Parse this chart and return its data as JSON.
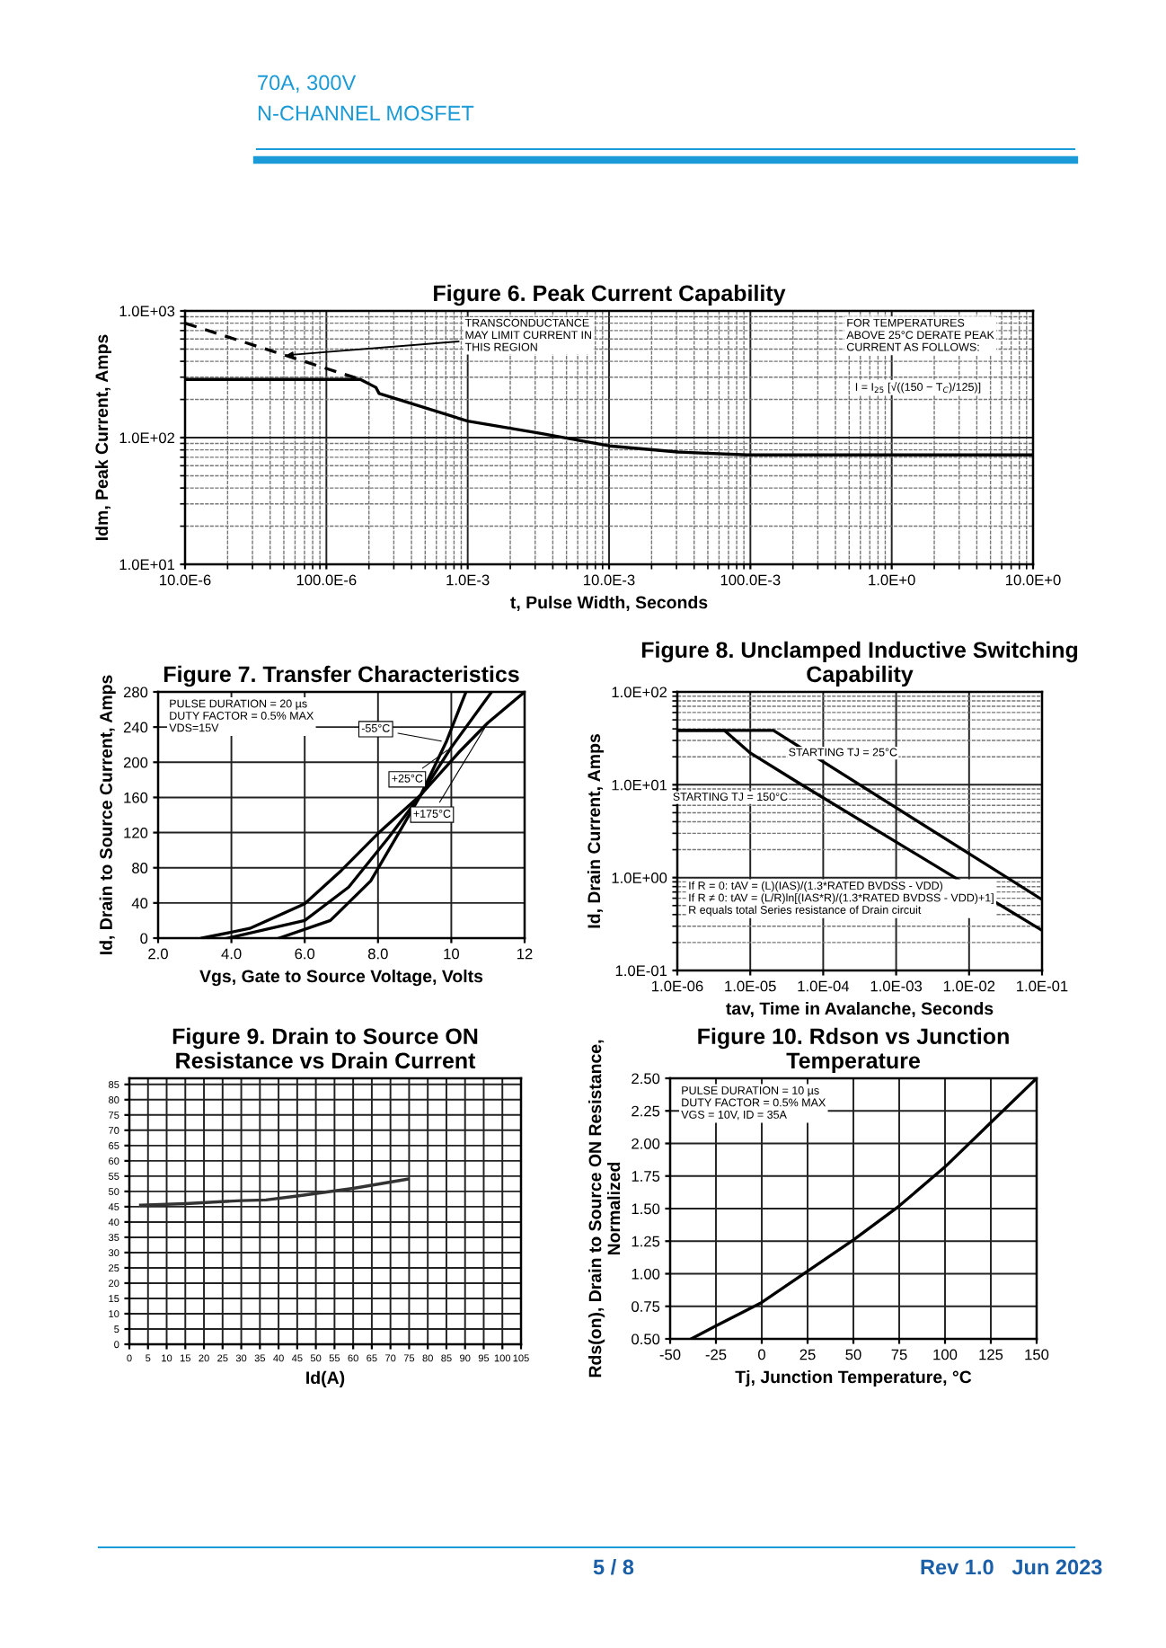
{
  "chart_data": [
    {
      "type": "other",
      "annotations": [
        "70A, 300V",
        "N-CHANNEL MOSFET"
      ]
    },
    {
      "type": "line",
      "title": "Figure 6. Peak Current Capability",
      "xlabel": "t, Pulse Width, Seconds",
      "ylabel": "Idm, Peak Current, Amps",
      "log": "xy",
      "grid": true,
      "xlim": [
        1e-05,
        10
      ],
      "ylim": [
        10,
        1000
      ],
      "xticks": [
        {
          "value": 1e-05,
          "label": "10.0E-6"
        },
        {
          "value": 0.0001,
          "label": "100.0E-6"
        },
        {
          "value": 0.001,
          "label": "1.0E-3"
        },
        {
          "value": 0.01,
          "label": "10.0E-3"
        },
        {
          "value": 0.1,
          "label": "100.0E-3"
        },
        {
          "value": 1,
          "label": "1.0E+0"
        },
        {
          "value": 10,
          "label": "10.0E+0"
        }
      ],
      "yticks": [
        {
          "value": 10,
          "label": "1.0E+01"
        },
        {
          "value": 100,
          "label": "1.0E+02"
        },
        {
          "value": 1000,
          "label": "1.0E+03"
        }
      ],
      "series": [
        {
          "color": "#000000",
          "line_style": "solid",
          "x": [
            1e-05,
            0.000174,
            0.000224,
            0.000236,
            0.001,
            0.0033,
            0.01,
            0.0307,
            0.095,
            10
          ],
          "values": [
            288,
            288,
            249,
            223,
            135,
            108,
            86,
            77,
            73,
            73
          ]
        },
        {
          "color": "#000000",
          "line_style": "dashed",
          "x": [
            1e-05,
            0.000174
          ],
          "values": [
            800,
            288
          ]
        }
      ],
      "annotations": [
        {
          "text": "TRANSCONDUCTANCE\nMAY LIMIT CURRENT IN\nTHIS REGION",
          "x": 4.8e-05,
          "y": 444
        },
        "FOR TEMPERATURES\nABOVE 25°C DERATE PEAK\nCURRENT AS FOLLOWS:",
        "I = I$_{25}$ [√((150 − T$_{C}$)/125)]"
      ]
    },
    {
      "type": "line",
      "title": "Figure 7. Transfer Characteristics",
      "xlabel": "Vgs, Gate to Source Voltage, Volts",
      "ylabel": "Id, Drain to Source Current, Amps",
      "grid": true,
      "xlim": [
        2,
        12
      ],
      "ylim": [
        0,
        280
      ],
      "xticks": [
        {
          "value": 2,
          "label": "2.0"
        },
        {
          "value": 4,
          "label": "4.0"
        },
        {
          "value": 6,
          "label": "6.0"
        },
        {
          "value": 8,
          "label": "8.0"
        },
        10,
        12
      ],
      "yticks": [
        0,
        40,
        80,
        120,
        160,
        200,
        240,
        280
      ],
      "series": [
        {
          "name": "-55°C",
          "color": "#000000",
          "x": [
            5.3,
            6.7,
            7.8,
            8.6,
            9.17,
            9.86,
            10.4
          ],
          "values": [
            0,
            20,
            65,
            122,
            163,
            223,
            280
          ]
        },
        {
          "name": "+25°C",
          "color": "#000000",
          "x": [
            3.9,
            6.0,
            7.2,
            8.3,
            9.17,
            10.0,
            11.1
          ],
          "values": [
            0,
            20,
            58,
            115,
            163,
            217,
            280
          ]
        },
        {
          "name": "+175°C",
          "color": "#000000",
          "x": [
            3.2,
            4.5,
            6.0,
            7.0,
            8.0,
            9.17,
            10.2,
            11.0,
            12.0
          ],
          "values": [
            0,
            11,
            39,
            77,
            119,
            163,
            211,
            245,
            280
          ]
        }
      ],
      "annotations": [
        "PULSE DURATION = 20 µs\nDUTY FACTOR = 0.5% MAX\nVDS=15V"
      ]
    },
    {
      "type": "line",
      "title": "Figure 8. Unclamped Inductive Switching\nCapability",
      "xlabel": "tav, Time in Avalanche, Seconds",
      "ylabel": "Id, Drain Current, Amps",
      "log": "xy",
      "grid": true,
      "xlim": [
        1e-06,
        0.1
      ],
      "ylim": [
        0.1,
        100
      ],
      "xticks": [
        {
          "value": 1e-06,
          "label": "1.0E-06"
        },
        {
          "value": 1e-05,
          "label": "1.0E-05"
        },
        {
          "value": 0.0001,
          "label": "1.0E-04"
        },
        {
          "value": 0.001,
          "label": "1.0E-03"
        },
        {
          "value": 0.01,
          "label": "1.0E-02"
        },
        {
          "value": 0.1,
          "label": "1.0E-01"
        }
      ],
      "yticks": [
        {
          "value": 0.1,
          "label": "1.0E-01"
        },
        {
          "value": 1,
          "label": "1.0E+00"
        },
        {
          "value": 10,
          "label": "1.0E+01"
        },
        {
          "value": 100,
          "label": "1.0E+02"
        }
      ],
      "series": [
        {
          "name": "STARTING TJ = 25°C",
          "color": "#000000",
          "x": [
            1e-06,
            2.08e-05,
            0.1
          ],
          "values": [
            38.5,
            38.5,
            0.58
          ]
        },
        {
          "name": "STARTING TJ = 150°C",
          "color": "#000000",
          "x": [
            1e-06,
            4.4e-06,
            1e-05,
            4.5e-05,
            0.1
          ],
          "values": [
            38.5,
            38.5,
            22,
            10.6,
            0.27
          ]
        }
      ],
      "annotations": [
        "If R = 0: tAV = (L)(IAS)/(1.3*RATED BVDSS - VDD)\nIf R ≠ 0: tAV = (L/R)ln[(IAS*R)/(1.3*RATED BVDSS - VDD)+1]\nR equals total Series resistance of Drain circuit"
      ]
    },
    {
      "type": "line",
      "title": "Figure 9. Drain to Source ON\nResistance vs Drain Current",
      "xlabel": "Id(A)",
      "grid": true,
      "xlim": [
        0,
        105
      ],
      "ylim": [
        0,
        87
      ],
      "xticks": [
        0,
        5,
        10,
        15,
        20,
        25,
        30,
        35,
        40,
        45,
        50,
        55,
        60,
        65,
        70,
        75,
        80,
        85,
        90,
        95,
        100,
        105
      ],
      "yticks": [
        0,
        5,
        10,
        15,
        20,
        25,
        30,
        35,
        40,
        45,
        50,
        55,
        60,
        65,
        70,
        75,
        80,
        85
      ],
      "series": [
        {
          "color": "#333333",
          "x": [
            3,
            15,
            30,
            36.6,
            45,
            60,
            74.5
          ],
          "values": [
            45.5,
            46,
            47,
            47.2,
            48.5,
            51,
            54
          ]
        }
      ]
    },
    {
      "type": "line",
      "title": "Figure 10. Rdson vs Junction\nTemperature",
      "xlabel": "Tj, Junction Temperature, °C",
      "ylabel": "Rds(on), Drain to Source ON Resistance,\nNormalized",
      "grid": true,
      "xlim": [
        -50,
        150
      ],
      "ylim": [
        0.5,
        2.5
      ],
      "xticks": [
        -50,
        -25,
        0,
        25,
        50,
        75,
        100,
        125,
        150
      ],
      "yticks": [
        {
          "value": 0.5,
          "label": "0.50"
        },
        {
          "value": 0.75,
          "label": "0.75"
        },
        {
          "value": 1.0,
          "label": "1.00"
        },
        {
          "value": 1.25,
          "label": "1.25"
        },
        {
          "value": 1.5,
          "label": "1.50"
        },
        {
          "value": 1.75,
          "label": "1.75"
        },
        {
          "value": 2.0,
          "label": "2.00"
        },
        {
          "value": 2.25,
          "label": "2.25"
        },
        {
          "value": 2.5,
          "label": "2.50"
        }
      ],
      "series": [
        {
          "color": "#000000",
          "x": [
            -38.5,
            -25,
            0,
            50,
            75,
            100,
            125,
            150
          ],
          "values": [
            0.5,
            0.6,
            0.78,
            1.26,
            1.52,
            1.82,
            2.16,
            2.5
          ]
        }
      ],
      "annotations": [
        "PULSE DURATION = 10 µs\nDUTY FACTOR = 0.5% MAX\nVGS = 10V, ID = 35A"
      ]
    },
    {
      "type": "other",
      "annotations": [
        "5 / 8",
        "Rev 1.0   Jun 2023"
      ]
    }
  ]
}
